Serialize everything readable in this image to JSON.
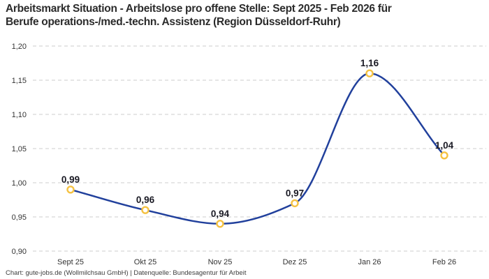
{
  "title": {
    "lines": [
      "Arbeitsmarkt Situation - Arbeitslose pro offene Stelle: Sept 2025 - Feb 2026 für",
      "Berufe operations-/med.-techn. Assistenz (Region Düsseldorf-Ruhr)"
    ]
  },
  "footer": {
    "text": "Chart: gute-jobs.de (Wollmilchsau GmbH) | Datenquelle: Bundesagentur für Arbeit"
  },
  "colors": {
    "line": "#21409C",
    "marker_stroke": "#F5C242",
    "marker_fill": "#FFFFFF",
    "grid": "#CCCCCC",
    "tick_text": "#333333",
    "data_label": "#1A1A24",
    "title_text": "#2B2B2B",
    "footer_text": "#3D3D3D",
    "background": "#FFFFFF"
  },
  "chart_data": {
    "type": "line",
    "smooth": true,
    "categories": [
      "Sept 25",
      "Okt 25",
      "Nov 25",
      "Dez 25",
      "Jan 26",
      "Feb 26"
    ],
    "values": [
      0.99,
      0.96,
      0.94,
      0.97,
      1.16,
      1.04
    ],
    "value_labels": [
      "0,99",
      "0,96",
      "0,94",
      "0,97",
      "1,16",
      "1,04"
    ],
    "y_ticks": [
      0.9,
      0.95,
      1.0,
      1.05,
      1.1,
      1.15,
      1.2
    ],
    "y_tick_labels": [
      "0,90",
      "0,95",
      "1,00",
      "1,05",
      "1,10",
      "1,15",
      "1,20"
    ],
    "ylim": [
      0.9,
      1.2
    ],
    "xlabel": "",
    "ylabel": "",
    "grid": "horizontal-dashed",
    "legend": "none",
    "marker": "open-circle"
  }
}
